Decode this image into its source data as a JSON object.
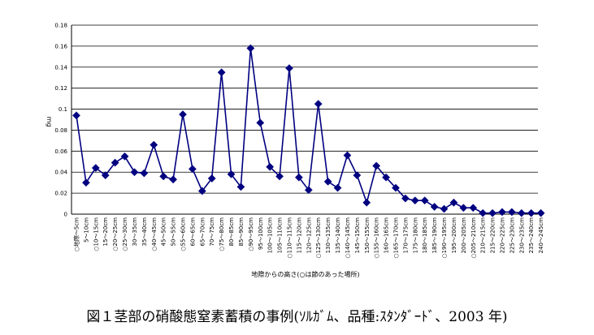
{
  "caption": "図１茎部の硝酸態窒素蓄積の事例(ｿﾙｶﾞﾑ、品種:ｽﾀﾝﾀﾞｰﾄﾞ、2003 年)",
  "chart_data": {
    "type": "line",
    "ylabel": "mg",
    "xlabel": "地際からの高さ(○は節のあった場所)",
    "ylim": [
      0,
      0.18
    ],
    "yticks": [
      "0",
      "0.02",
      "0.04",
      "0.06",
      "0.08",
      "0.1",
      "0.12",
      "0.14",
      "0.16",
      "0.18"
    ],
    "grid": true,
    "line_color": "#000080",
    "marker_color": "#000080",
    "categories": [
      "○地際～5cm",
      "5～10cm",
      "○10～15cm",
      "15～20cm",
      "○20～25cm",
      "○25～30cm",
      "30～35cm",
      "35～40cm",
      "○40～45cm",
      "45～50cm",
      "50～55cm",
      "○55～60cm",
      "60～65cm",
      "65～70cm",
      "70～75cm",
      "○75～80cm",
      "80～85cm",
      "85～90cm",
      "○90～95cm",
      "95～100cm",
      "100～105cm",
      "105～110cm",
      "○110～115cm",
      "115～120cm",
      "120～125cm",
      "○125～130cm",
      "130～135cm",
      "135～140cm",
      "○140～145cm",
      "145～150cm",
      "150～155cm",
      "○155～160cm",
      "160～165cm",
      "○165～170cm",
      "170～175cm",
      "175～180cm",
      "180～185cm",
      "185～190cm",
      "○190～195cm",
      "195～200cm",
      "200～205cm",
      "○205～210cm",
      "210～215cm",
      "215～220cm",
      "220～225cm",
      "225～230cm",
      "230～235cm",
      "235～240cm",
      "240～245cm"
    ],
    "values": [
      0.094,
      0.03,
      0.044,
      0.037,
      0.049,
      0.055,
      0.04,
      0.039,
      0.066,
      0.036,
      0.033,
      0.095,
      0.043,
      0.022,
      0.034,
      0.135,
      0.038,
      0.026,
      0.158,
      0.087,
      0.045,
      0.036,
      0.139,
      0.035,
      0.023,
      0.105,
      0.031,
      0.025,
      0.056,
      0.037,
      0.011,
      0.046,
      0.035,
      0.025,
      0.015,
      0.013,
      0.013,
      0.007,
      0.005,
      0.011,
      0.006,
      0.006,
      0.001,
      0.001,
      0.002,
      0.002,
      0.001,
      0.001,
      0.001
    ]
  }
}
